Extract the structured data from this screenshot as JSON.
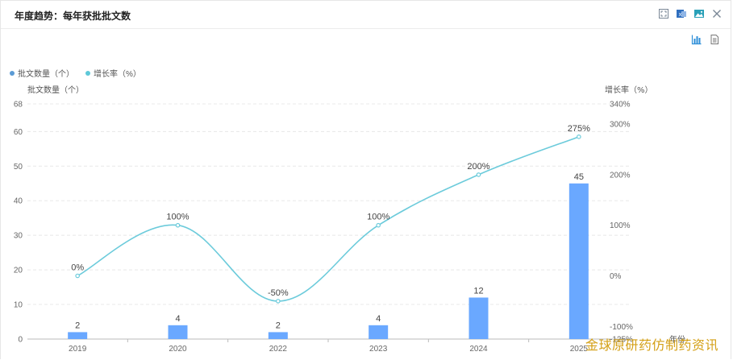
{
  "window": {
    "title": "年度趋势：每年获批批文数"
  },
  "toolbar_icons": [
    "expand-icon",
    "excel-export-icon",
    "image-export-icon",
    "close-icon"
  ],
  "view_icons": [
    "bar-chart-view-icon",
    "data-table-view-icon"
  ],
  "legend": [
    {
      "label": "批文数量（个）",
      "color": "#5b9bd5"
    },
    {
      "label": "增长率（%）",
      "color": "#5ec8d8"
    }
  ],
  "colors": {
    "bar": "#6aa8ff",
    "line": "#6ccbdb",
    "grid": "#e8e8e8",
    "axis_text": "#666666"
  },
  "watermark": "金球原研药仿制药资讯",
  "chart_data": {
    "type": "bar",
    "categories": [
      "2019",
      "2020",
      "2022",
      "2023",
      "2024",
      "2025"
    ],
    "xlabel": "年份",
    "ylabel": "批文数量（个）",
    "y2label": "增长率（%）",
    "ylim": [
      0,
      68
    ],
    "yticks": [
      0,
      10,
      20,
      30,
      40,
      50,
      60,
      68
    ],
    "y2lim": [
      -125,
      340
    ],
    "y2ticks": [
      "-125%",
      "-100%",
      "0%",
      "100%",
      "200%",
      "300%",
      "340%"
    ],
    "y2tickvalues": [
      -125,
      -100,
      0,
      100,
      200,
      300,
      340
    ],
    "series": [
      {
        "name": "批文数量（个）",
        "type": "bar",
        "values": [
          2,
          4,
          2,
          4,
          12,
          45
        ],
        "labels": [
          "2",
          "4",
          "2",
          "4",
          "12",
          "45"
        ]
      },
      {
        "name": "增长率（%）",
        "type": "line",
        "axis": "right",
        "values": [
          0,
          100,
          -50,
          100,
          200,
          275
        ],
        "labels": [
          "0%",
          "100%",
          "-50%",
          "100%",
          "200%",
          "275%"
        ]
      }
    ],
    "grid": true,
    "legend_position": "top-left"
  }
}
